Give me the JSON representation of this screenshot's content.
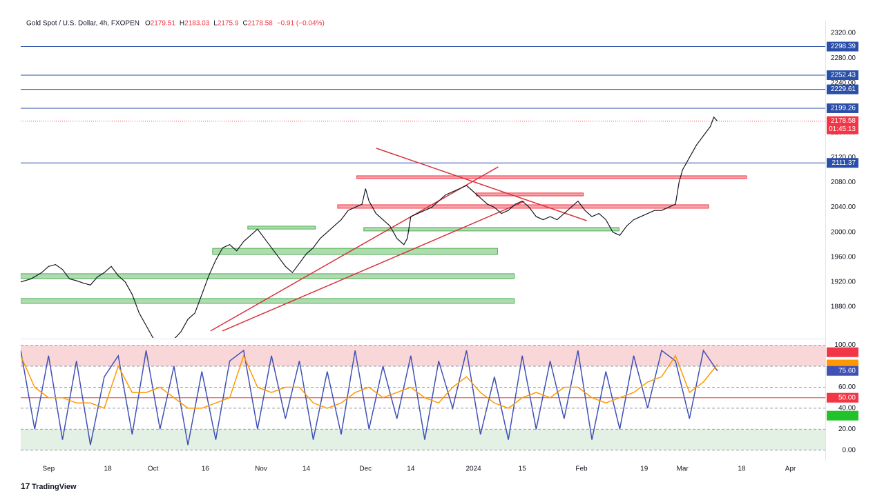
{
  "header": {
    "symbol": "Gold Spot / U.S. Dollar, 4h, FXOPEN",
    "ohlc": [
      {
        "label": "O",
        "value": 2179.51
      },
      {
        "label": "H",
        "value": 2183.03
      },
      {
        "label": "L",
        "value": 2175.9
      },
      {
        "label": "C",
        "value": 2178.58
      }
    ],
    "change": "−0.91 (−0.04%)"
  },
  "branding": "TradingView",
  "chart_data": [
    {
      "type": "line",
      "color": "#131722",
      "xlim": [
        -8,
        223
      ],
      "ylim": [
        1830,
        2340
      ],
      "yticks": [
        {
          "value": 1880,
          "label": "1880.00"
        },
        {
          "value": 1920,
          "label": "1920.00"
        },
        {
          "value": 1960,
          "label": "1960.00"
        },
        {
          "value": 2000,
          "label": "2000.00"
        },
        {
          "value": 2040,
          "label": "2040.00"
        },
        {
          "value": 2080,
          "label": "2080.00"
        },
        {
          "value": 2120,
          "label": "2120.00"
        },
        {
          "value": 2160,
          "label": "2160.00"
        },
        {
          "value": 2200,
          "label": "2200.00"
        },
        {
          "value": 2240,
          "label": "2240.00"
        },
        {
          "value": 2280,
          "label": "2280.00"
        },
        {
          "value": 2320,
          "label": "2320.00"
        }
      ],
      "x": [
        -8,
        -5,
        -2,
        0,
        2,
        4,
        6,
        8,
        10,
        12,
        14,
        16,
        18,
        20,
        22,
        24,
        26,
        28,
        30,
        32,
        35,
        38,
        40,
        42,
        44,
        46,
        48,
        50,
        52,
        54,
        56,
        58,
        60,
        62,
        64,
        66,
        68,
        70,
        72,
        74,
        76,
        78,
        80,
        82,
        84,
        86,
        88,
        90,
        91,
        92,
        94,
        96,
        98,
        100,
        102,
        103,
        104,
        106,
        108,
        110,
        112,
        114,
        116,
        118,
        120,
        122,
        124,
        126,
        128,
        130,
        132,
        134,
        136,
        138,
        140,
        142,
        144,
        146,
        148,
        150,
        152,
        154,
        156,
        158,
        160,
        162,
        164,
        166,
        168,
        170,
        172,
        174,
        176,
        178,
        180,
        181,
        182,
        184,
        186,
        188,
        190,
        191,
        192
      ],
      "values": [
        1920,
        1925,
        1935,
        1945,
        1948,
        1940,
        1925,
        1922,
        1918,
        1915,
        1928,
        1935,
        1945,
        1930,
        1920,
        1900,
        1870,
        1850,
        1830,
        1825,
        1822,
        1840,
        1860,
        1870,
        1900,
        1930,
        1955,
        1975,
        1980,
        1970,
        1985,
        1995,
        2005,
        1990,
        1975,
        1960,
        1945,
        1935,
        1950,
        1965,
        1975,
        1990,
        2000,
        2010,
        2020,
        2035,
        2040,
        2045,
        2070,
        2050,
        2030,
        2020,
        2010,
        1990,
        1980,
        1990,
        2025,
        2030,
        2035,
        2040,
        2050,
        2060,
        2065,
        2070,
        2075,
        2065,
        2055,
        2045,
        2040,
        2030,
        2035,
        2045,
        2050,
        2040,
        2025,
        2020,
        2025,
        2020,
        2030,
        2040,
        2050,
        2035,
        2025,
        2030,
        2020,
        2000,
        1995,
        2010,
        2020,
        2025,
        2030,
        2035,
        2035,
        2040,
        2045,
        2080,
        2100,
        2120,
        2140,
        2155,
        2170,
        2185,
        2178.58
      ],
      "price_lines": [
        {
          "value": 2298.39,
          "color": "#2a4fa8"
        },
        {
          "value": 2252.43,
          "color": "#2a4fa8"
        },
        {
          "value": 2229.61,
          "color": "#2a4fa8"
        },
        {
          "value": 2199.26,
          "color": "#2a4fa8"
        },
        {
          "value": 2111.37,
          "color": "#2a4fa8"
        }
      ],
      "last_price": {
        "value": 2178.58,
        "countdown": "01:45:13",
        "color": "#f23645"
      },
      "zones": [
        {
          "x0": 88.5,
          "x1": 200.4,
          "low": 2086.2,
          "high": 2090.6,
          "color": "#f23645"
        },
        {
          "x0": 122.8,
          "x1": 153.5,
          "low": 2058.4,
          "high": 2063,
          "color": "#f23645"
        },
        {
          "x0": 83,
          "x1": 189.5,
          "low": 2038.5,
          "high": 2044,
          "color": "#f23645"
        },
        {
          "x0": 57.2,
          "x1": 76.6,
          "low": 2005,
          "high": 2009.7,
          "color": "#4caf50"
        },
        {
          "x0": 90.5,
          "x1": 163.8,
          "low": 2002,
          "high": 2007.5,
          "color": "#4caf50"
        },
        {
          "x0": 47.1,
          "x1": 128.9,
          "low": 1964.2,
          "high": 1974,
          "color": "#4caf50"
        },
        {
          "x0": -8,
          "x1": 133.7,
          "low": 1925.5,
          "high": 1933.2,
          "color": "#4caf50"
        },
        {
          "x0": -8,
          "x1": 133.7,
          "low": 1885.6,
          "high": 1893.3,
          "color": "#4caf50"
        }
      ],
      "trendlines": [
        {
          "x": [
            94.1,
            154.5
          ],
          "y": [
            2134.9,
            2018.5
          ],
          "color": "#d9323c"
        },
        {
          "x": [
            46.5,
            129.1
          ],
          "y": [
            1841.2,
            2105
          ],
          "color": "#d9323c"
        },
        {
          "x": [
            49.9,
            136.6
          ],
          "y": [
            1841.2,
            2049.6
          ],
          "color": "#d9323c"
        }
      ]
    },
    {
      "type": "line",
      "xlim": [
        -8,
        223
      ],
      "ylim": [
        -10,
        105
      ],
      "yticks": [
        {
          "value": 0,
          "label": "0.00"
        },
        {
          "value": 20,
          "label": "20.00"
        },
        {
          "value": 40,
          "label": "40.00"
        },
        {
          "value": 60,
          "label": "60.00"
        },
        {
          "value": 80,
          "label": "80.00"
        },
        {
          "value": 100,
          "label": "100.00"
        }
      ],
      "xticks": [
        {
          "value": 0,
          "label": "Sep"
        },
        {
          "value": 17,
          "label": "18"
        },
        {
          "value": 30,
          "label": "Oct"
        },
        {
          "value": 45,
          "label": "16"
        },
        {
          "value": 61,
          "label": "Nov"
        },
        {
          "value": 74,
          "label": "14"
        },
        {
          "value": 91,
          "label": "Dec"
        },
        {
          "value": 104,
          "label": "14"
        },
        {
          "value": 122,
          "label": "2024"
        },
        {
          "value": 136,
          "label": "15"
        },
        {
          "value": 153,
          "label": "Feb"
        },
        {
          "value": 171,
          "label": "19"
        },
        {
          "value": 182,
          "label": "Mar"
        },
        {
          "value": 199,
          "label": "18"
        },
        {
          "value": 213,
          "label": "Apr"
        }
      ],
      "x": [
        -8,
        -4,
        0,
        4,
        8,
        12,
        16,
        20,
        24,
        28,
        32,
        36,
        40,
        44,
        48,
        52,
        56,
        60,
        64,
        68,
        72,
        76,
        80,
        84,
        88,
        92,
        96,
        100,
        104,
        108,
        112,
        116,
        120,
        124,
        128,
        132,
        136,
        140,
        144,
        148,
        152,
        156,
        160,
        164,
        168,
        172,
        176,
        180,
        184,
        188,
        192
      ],
      "series": [
        {
          "color": "#3f51b5",
          "values": [
            95,
            20,
            90,
            10,
            85,
            5,
            70,
            90,
            15,
            95,
            20,
            80,
            5,
            75,
            10,
            85,
            95,
            20,
            90,
            30,
            85,
            10,
            75,
            15,
            95,
            20,
            80,
            30,
            90,
            10,
            85,
            40,
            95,
            15,
            70,
            10,
            90,
            20,
            85,
            30,
            95,
            10,
            75,
            20,
            90,
            40,
            95,
            85,
            30,
            95,
            75.6
          ]
        },
        {
          "color": "#ff9800",
          "values": [
            90,
            60,
            50,
            50,
            45,
            45,
            40,
            80,
            55,
            55,
            60,
            50,
            40,
            40,
            45,
            50,
            90,
            60,
            55,
            60,
            60,
            45,
            40,
            45,
            55,
            60,
            50,
            55,
            60,
            50,
            45,
            60,
            70,
            55,
            45,
            40,
            50,
            55,
            50,
            60,
            60,
            50,
            45,
            50,
            55,
            65,
            70,
            90,
            55,
            65,
            81.66
          ]
        }
      ],
      "bands": [
        {
          "low": 80,
          "high": 100,
          "color": "#f9d6d8"
        },
        {
          "low": 0,
          "high": 20,
          "color": "#e3f1e4"
        }
      ],
      "levels": [
        {
          "value": 50,
          "color": "#e53935"
        }
      ],
      "value_tags": [
        {
          "value": 93.36,
          "color": "#f23645"
        },
        {
          "value": 81.66,
          "color": "#ff9800"
        },
        {
          "value": 75.6,
          "label": "75.60",
          "color": "#3f51b5"
        },
        {
          "value": 50,
          "label": "50.00",
          "color": "#f23645"
        },
        {
          "value": 32.93,
          "color": "#22c22a"
        }
      ]
    }
  ]
}
